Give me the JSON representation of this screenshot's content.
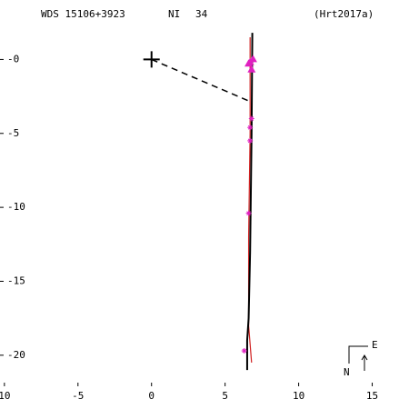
{
  "chart_data": {
    "type": "orbit",
    "title": "WDS 15106+3923",
    "discoverer": "NI",
    "number": "34",
    "reference": "(Hrt2017a)",
    "compass": {
      "east": "E",
      "north": "N"
    },
    "xlim": [
      -10.3,
      17.5
    ],
    "ylim": [
      -22.1,
      2.3
    ],
    "xticks": [
      {
        "value": -10,
        "label": "10"
      },
      -5,
      0,
      5,
      10,
      15
    ],
    "yticks": [
      {
        "value": 0,
        "label": "-0"
      },
      -5,
      -10,
      -15,
      -20
    ],
    "orbit": {
      "color": "#000000",
      "x": [
        6.85,
        6.8,
        6.7,
        6.6,
        6.5,
        6.5
      ],
      "y": [
        1.8,
        -5,
        -13,
        -17.5,
        -19,
        -21
      ]
    },
    "fit": {
      "color": "#d02020",
      "x": [
        6.7,
        6.7,
        6.6,
        6.6,
        6.8
      ],
      "y": [
        1.5,
        -5,
        -12,
        -18,
        -20.5
      ]
    },
    "observations": {
      "color": "#e020c0",
      "triangles": {
        "x": [
          6.6,
          6.9,
          6.8,
          6.7
        ],
        "y": [
          -0.3,
          0,
          -0.7,
          -0.2
        ]
      },
      "stars": {
        "x": [
          6.8,
          6.7,
          6.7,
          6.6,
          6.3
        ],
        "y": [
          -4,
          -4.6,
          -5.5,
          -10.4,
          -19.7
        ]
      }
    },
    "node_line": {
      "color": "#000000",
      "x": [
        0,
        6.6
      ],
      "y": [
        0,
        -2.8
      ]
    }
  }
}
